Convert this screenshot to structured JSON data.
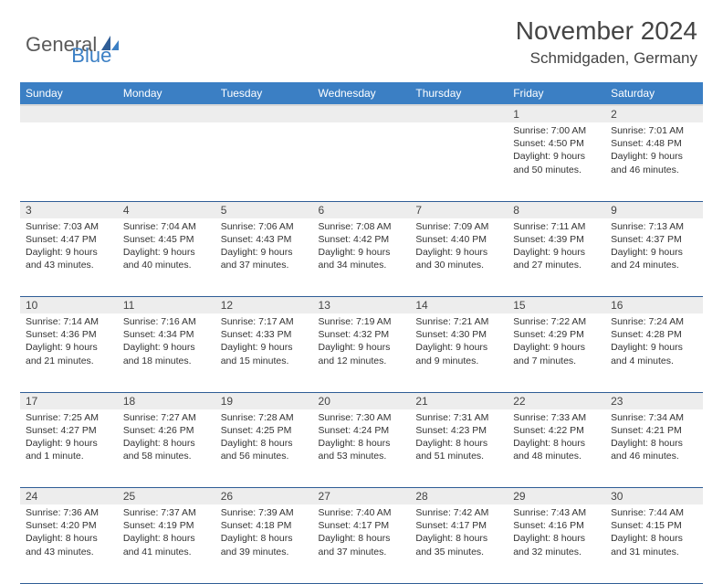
{
  "logo": {
    "text1": "General",
    "text2": "Blue"
  },
  "title": "November 2024",
  "location": "Schmidgaden, Germany",
  "colors": {
    "header_bg": "#3b7fc4",
    "header_text": "#ffffff",
    "daynum_bg": "#ededed",
    "border": "#2f5d96",
    "logo_gray": "#5a5a5a",
    "logo_blue": "#3b7fc4"
  },
  "weekdays": [
    "Sunday",
    "Monday",
    "Tuesday",
    "Wednesday",
    "Thursday",
    "Friday",
    "Saturday"
  ],
  "weeks": [
    [
      {
        "n": "",
        "sr": "",
        "ss": "",
        "dl": ""
      },
      {
        "n": "",
        "sr": "",
        "ss": "",
        "dl": ""
      },
      {
        "n": "",
        "sr": "",
        "ss": "",
        "dl": ""
      },
      {
        "n": "",
        "sr": "",
        "ss": "",
        "dl": ""
      },
      {
        "n": "",
        "sr": "",
        "ss": "",
        "dl": ""
      },
      {
        "n": "1",
        "sr": "Sunrise: 7:00 AM",
        "ss": "Sunset: 4:50 PM",
        "dl": "Daylight: 9 hours and 50 minutes."
      },
      {
        "n": "2",
        "sr": "Sunrise: 7:01 AM",
        "ss": "Sunset: 4:48 PM",
        "dl": "Daylight: 9 hours and 46 minutes."
      }
    ],
    [
      {
        "n": "3",
        "sr": "Sunrise: 7:03 AM",
        "ss": "Sunset: 4:47 PM",
        "dl": "Daylight: 9 hours and 43 minutes."
      },
      {
        "n": "4",
        "sr": "Sunrise: 7:04 AM",
        "ss": "Sunset: 4:45 PM",
        "dl": "Daylight: 9 hours and 40 minutes."
      },
      {
        "n": "5",
        "sr": "Sunrise: 7:06 AM",
        "ss": "Sunset: 4:43 PM",
        "dl": "Daylight: 9 hours and 37 minutes."
      },
      {
        "n": "6",
        "sr": "Sunrise: 7:08 AM",
        "ss": "Sunset: 4:42 PM",
        "dl": "Daylight: 9 hours and 34 minutes."
      },
      {
        "n": "7",
        "sr": "Sunrise: 7:09 AM",
        "ss": "Sunset: 4:40 PM",
        "dl": "Daylight: 9 hours and 30 minutes."
      },
      {
        "n": "8",
        "sr": "Sunrise: 7:11 AM",
        "ss": "Sunset: 4:39 PM",
        "dl": "Daylight: 9 hours and 27 minutes."
      },
      {
        "n": "9",
        "sr": "Sunrise: 7:13 AM",
        "ss": "Sunset: 4:37 PM",
        "dl": "Daylight: 9 hours and 24 minutes."
      }
    ],
    [
      {
        "n": "10",
        "sr": "Sunrise: 7:14 AM",
        "ss": "Sunset: 4:36 PM",
        "dl": "Daylight: 9 hours and 21 minutes."
      },
      {
        "n": "11",
        "sr": "Sunrise: 7:16 AM",
        "ss": "Sunset: 4:34 PM",
        "dl": "Daylight: 9 hours and 18 minutes."
      },
      {
        "n": "12",
        "sr": "Sunrise: 7:17 AM",
        "ss": "Sunset: 4:33 PM",
        "dl": "Daylight: 9 hours and 15 minutes."
      },
      {
        "n": "13",
        "sr": "Sunrise: 7:19 AM",
        "ss": "Sunset: 4:32 PM",
        "dl": "Daylight: 9 hours and 12 minutes."
      },
      {
        "n": "14",
        "sr": "Sunrise: 7:21 AM",
        "ss": "Sunset: 4:30 PM",
        "dl": "Daylight: 9 hours and 9 minutes."
      },
      {
        "n": "15",
        "sr": "Sunrise: 7:22 AM",
        "ss": "Sunset: 4:29 PM",
        "dl": "Daylight: 9 hours and 7 minutes."
      },
      {
        "n": "16",
        "sr": "Sunrise: 7:24 AM",
        "ss": "Sunset: 4:28 PM",
        "dl": "Daylight: 9 hours and 4 minutes."
      }
    ],
    [
      {
        "n": "17",
        "sr": "Sunrise: 7:25 AM",
        "ss": "Sunset: 4:27 PM",
        "dl": "Daylight: 9 hours and 1 minute."
      },
      {
        "n": "18",
        "sr": "Sunrise: 7:27 AM",
        "ss": "Sunset: 4:26 PM",
        "dl": "Daylight: 8 hours and 58 minutes."
      },
      {
        "n": "19",
        "sr": "Sunrise: 7:28 AM",
        "ss": "Sunset: 4:25 PM",
        "dl": "Daylight: 8 hours and 56 minutes."
      },
      {
        "n": "20",
        "sr": "Sunrise: 7:30 AM",
        "ss": "Sunset: 4:24 PM",
        "dl": "Daylight: 8 hours and 53 minutes."
      },
      {
        "n": "21",
        "sr": "Sunrise: 7:31 AM",
        "ss": "Sunset: 4:23 PM",
        "dl": "Daylight: 8 hours and 51 minutes."
      },
      {
        "n": "22",
        "sr": "Sunrise: 7:33 AM",
        "ss": "Sunset: 4:22 PM",
        "dl": "Daylight: 8 hours and 48 minutes."
      },
      {
        "n": "23",
        "sr": "Sunrise: 7:34 AM",
        "ss": "Sunset: 4:21 PM",
        "dl": "Daylight: 8 hours and 46 minutes."
      }
    ],
    [
      {
        "n": "24",
        "sr": "Sunrise: 7:36 AM",
        "ss": "Sunset: 4:20 PM",
        "dl": "Daylight: 8 hours and 43 minutes."
      },
      {
        "n": "25",
        "sr": "Sunrise: 7:37 AM",
        "ss": "Sunset: 4:19 PM",
        "dl": "Daylight: 8 hours and 41 minutes."
      },
      {
        "n": "26",
        "sr": "Sunrise: 7:39 AM",
        "ss": "Sunset: 4:18 PM",
        "dl": "Daylight: 8 hours and 39 minutes."
      },
      {
        "n": "27",
        "sr": "Sunrise: 7:40 AM",
        "ss": "Sunset: 4:17 PM",
        "dl": "Daylight: 8 hours and 37 minutes."
      },
      {
        "n": "28",
        "sr": "Sunrise: 7:42 AM",
        "ss": "Sunset: 4:17 PM",
        "dl": "Daylight: 8 hours and 35 minutes."
      },
      {
        "n": "29",
        "sr": "Sunrise: 7:43 AM",
        "ss": "Sunset: 4:16 PM",
        "dl": "Daylight: 8 hours and 32 minutes."
      },
      {
        "n": "30",
        "sr": "Sunrise: 7:44 AM",
        "ss": "Sunset: 4:15 PM",
        "dl": "Daylight: 8 hours and 31 minutes."
      }
    ]
  ]
}
